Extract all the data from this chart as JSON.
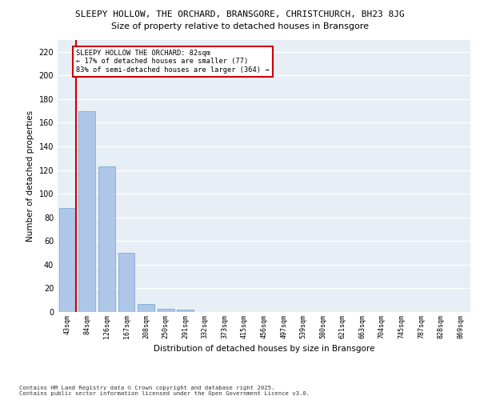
{
  "title_line1": "SLEEPY HOLLOW, THE ORCHARD, BRANSGORE, CHRISTCHURCH, BH23 8JG",
  "title_line2": "Size of property relative to detached houses in Bransgore",
  "xlabel": "Distribution of detached houses by size in Bransgore",
  "ylabel": "Number of detached properties",
  "categories": [
    "43sqm",
    "84sqm",
    "126sqm",
    "167sqm",
    "208sqm",
    "250sqm",
    "291sqm",
    "332sqm",
    "373sqm",
    "415sqm",
    "456sqm",
    "497sqm",
    "539sqm",
    "580sqm",
    "621sqm",
    "663sqm",
    "704sqm",
    "745sqm",
    "787sqm",
    "828sqm",
    "869sqm"
  ],
  "values": [
    88,
    170,
    123,
    50,
    7,
    3,
    2,
    0,
    0,
    0,
    0,
    0,
    0,
    0,
    0,
    0,
    0,
    0,
    0,
    0,
    0
  ],
  "bar_color": "#aec6e8",
  "bar_edge_color": "#7aafd4",
  "highlight_line_color": "#cc0000",
  "annotation_text": "SLEEPY HOLLOW THE ORCHARD: 82sqm\n← 17% of detached houses are smaller (77)\n83% of semi-detached houses are larger (364) →",
  "annotation_box_color": "#cc0000",
  "ylim": [
    0,
    230
  ],
  "yticks": [
    0,
    20,
    40,
    60,
    80,
    100,
    120,
    140,
    160,
    180,
    200,
    220
  ],
  "footer_text": "Contains HM Land Registry data © Crown copyright and database right 2025.\nContains public sector information licensed under the Open Government Licence v3.0.",
  "bg_color": "#e8eef6",
  "grid_color": "#ffffff"
}
